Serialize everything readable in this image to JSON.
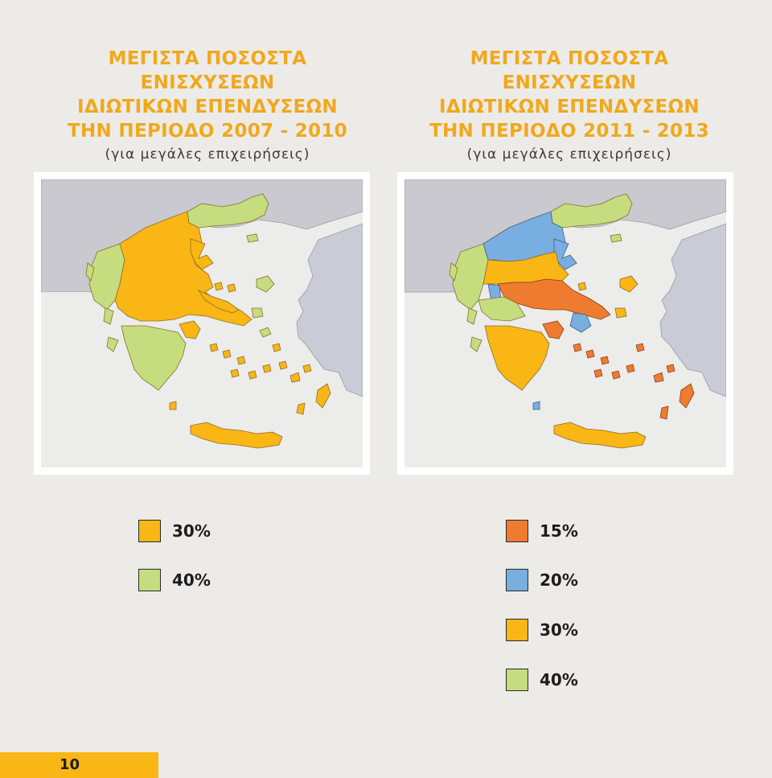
{
  "left": {
    "title_lines": [
      "ΜΕΓΙΣΤΑ ΠΟΣΟΣΤΑ ΕΝΙΣΧΥΣΕΩΝ",
      "ΙΔΙΩΤΙΚΩΝ ΕΠΕΝΔΥΣΕΩΝ",
      "ΤΗΝ ΠΕΡΙΟΔΟ 2007 - 2010"
    ],
    "subtitle": "(για μεγάλες επιχειρήσεις)",
    "legend": [
      {
        "label": "30%",
        "color": "#f9b614"
      },
      {
        "label": "40%",
        "color": "#c5dd7e"
      }
    ]
  },
  "right": {
    "title_lines": [
      "ΜΕΓΙΣΤΑ ΠΟΣΟΣΤΑ ΕΝΙΣΧΥΣΕΩΝ",
      "ΙΔΙΩΤΙΚΩΝ ΕΠΕΝΔΥΣΕΩΝ",
      "ΤΗΝ ΠΕΡΙΟΔΟ 2011 - 2013"
    ],
    "subtitle": "(για μεγάλες επιχειρήσεις)",
    "legend": [
      {
        "label": "15%",
        "color": "#ef7b30"
      },
      {
        "label": "20%",
        "color": "#79aee0"
      },
      {
        "label": "30%",
        "color": "#f9b614"
      },
      {
        "label": "40%",
        "color": "#c5dd7e"
      }
    ]
  },
  "colors": {
    "title": "#f0a81c",
    "sea": "#ececea",
    "neighbor_land": "#c9c9cf",
    "turkey": "#c9ccd6"
  },
  "page_number": "10"
}
